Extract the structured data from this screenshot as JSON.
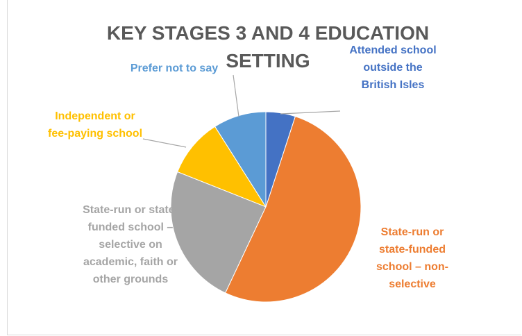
{
  "chart_data": {
    "type": "pie",
    "title": "KEY STAGES 3 AND 4 EDUCATION SETTING",
    "categories": [
      "Attended school outside the British Isles",
      "State-run or state-funded school – non-selective",
      "State-run or state-funded school – selective on academic, faith or other grounds",
      "Independent or fee-paying school",
      "Prefer not to say"
    ],
    "values": [
      5,
      52,
      24,
      10,
      9
    ],
    "colors": [
      "#4472c4",
      "#ed7d31",
      "#a5a5a5",
      "#ffc000",
      "#5b9bd5"
    ]
  }
}
